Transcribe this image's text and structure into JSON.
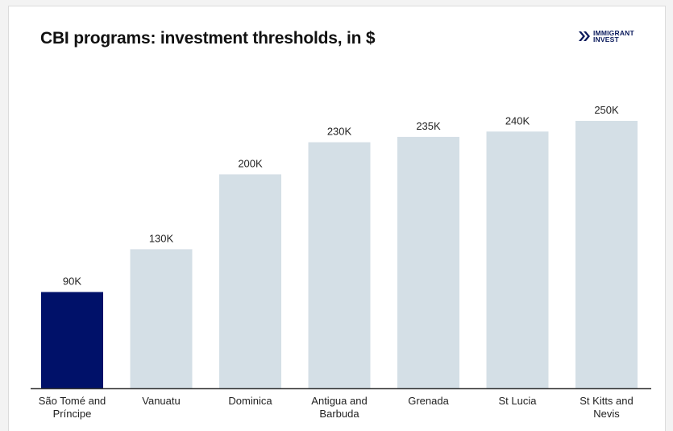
{
  "brand": {
    "line1": "IMMIGRANT",
    "line2": "INVEST",
    "color": "#0a1a5c"
  },
  "chart_data": {
    "type": "bar",
    "title": "CBI programs: investment thresholds, in $",
    "categories": [
      "São Tomé and Príncipe",
      "Vanuatu",
      "Dominica",
      "Antigua and Barbuda",
      "Grenada",
      "St Lucia",
      "St Kitts and Nevis"
    ],
    "values": [
      90000,
      130000,
      200000,
      230000,
      235000,
      240000,
      250000
    ],
    "data_labels": [
      "90K",
      "130K",
      "200K",
      "230K",
      "235K",
      "240K",
      "250K"
    ],
    "xlabel": "",
    "ylabel": "",
    "ylim": [
      0,
      250000
    ],
    "grid": false,
    "highlight_index": 0,
    "colors": {
      "highlight": "#001169",
      "default": "#d4dfe6",
      "axis": "#333333"
    }
  }
}
